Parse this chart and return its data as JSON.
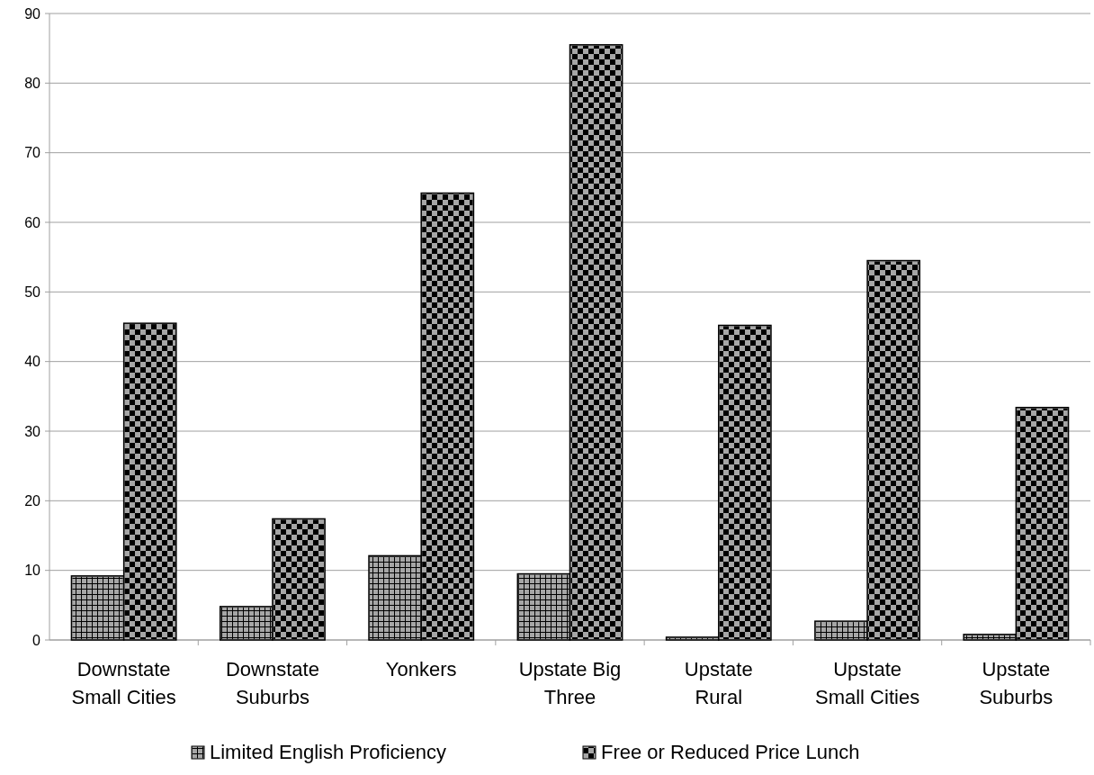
{
  "chart_data": {
    "type": "bar",
    "categories": [
      "Downstate Small Cities",
      "Downstate Suburbs",
      "Yonkers",
      "Upstate Big Three",
      "Upstate Rural",
      "Upstate Small Cities",
      "Upstate Suburbs"
    ],
    "series": [
      {
        "name": "Limited English Proficiency",
        "color": "#a6a6a6",
        "values": [
          9.2,
          4.8,
          12.1,
          9.5,
          0.4,
          2.7,
          0.8
        ]
      },
      {
        "name": "Free or Reduced Price Lunch",
        "color": "#a6a6a6",
        "values": [
          45.5,
          17.4,
          64.2,
          85.5,
          45.2,
          54.5,
          33.4
        ]
      }
    ],
    "ylim": [
      0,
      90
    ],
    "yticks": [
      0,
      10,
      20,
      30,
      40,
      50,
      60,
      70,
      80,
      90
    ],
    "grid": "y",
    "legend": "bottom"
  }
}
